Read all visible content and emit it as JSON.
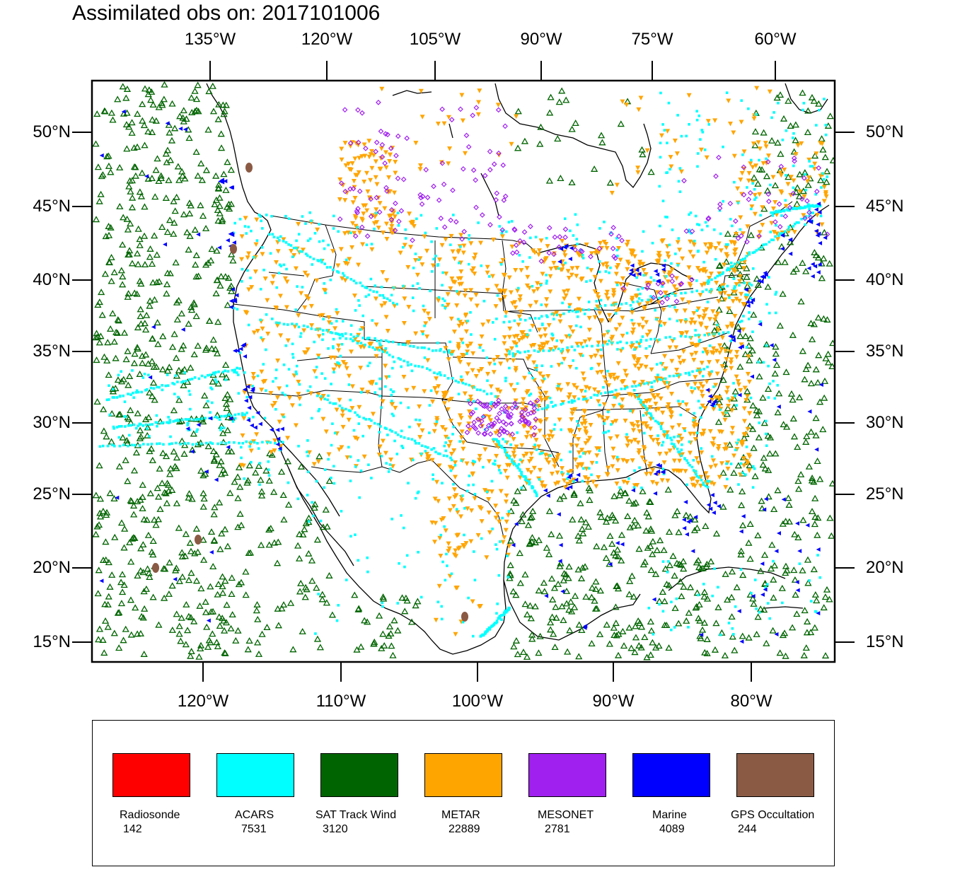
{
  "title": "Assimilated obs on: 2017101006",
  "top_lon_labels": [
    "135°W",
    "120°W",
    "105°W",
    "90°W",
    "75°W",
    "60°W"
  ],
  "bottom_lon_labels": [
    "120°W",
    "110°W",
    "100°W",
    "90°W",
    "80°W"
  ],
  "lat_labels": [
    "50°N",
    "45°N",
    "40°N",
    "35°N",
    "30°N",
    "25°N",
    "20°N",
    "15°N"
  ],
  "legend": [
    {
      "name": "Radiosonde",
      "count": "142",
      "color": "#ff0000"
    },
    {
      "name": "ACARS",
      "count": "7531",
      "color": "#00ffff"
    },
    {
      "name": "SAT Track Wind",
      "count": "3120",
      "color": "#006400"
    },
    {
      "name": "METAR",
      "count": "22889",
      "color": "#ffa500"
    },
    {
      "name": "MESONET",
      "count": "2781",
      "color": "#a020f0"
    },
    {
      "name": "Marine",
      "count": "4089",
      "color": "#0000ff"
    },
    {
      "name": "GPS Occultation",
      "count": "244",
      "color": "#8b5a44"
    }
  ]
}
